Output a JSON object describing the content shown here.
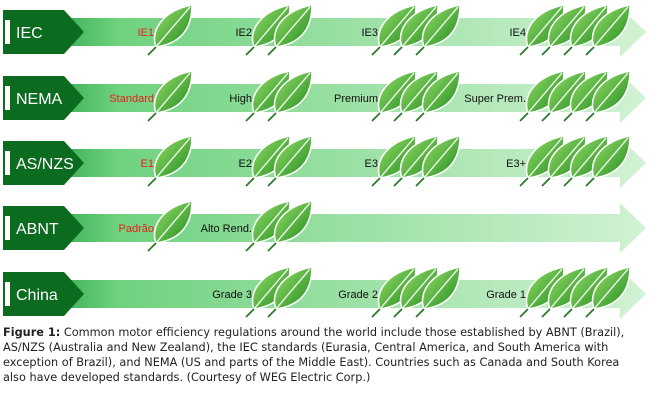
{
  "colors": {
    "arrow_start": "#0e8f2e",
    "arrow_end": "#d2f2d4",
    "label_box": "#0b6b1f",
    "lowest_class_text": "#e8201a",
    "leaf_dark": "#1f8a1f",
    "leaf_light": "#9ae06a"
  },
  "rows": [
    {
      "name": "IEC",
      "classes": [
        {
          "label": "IE1",
          "leaves": 1,
          "highlight": true
        },
        {
          "label": "IE2",
          "leaves": 2
        },
        {
          "label": "IE3",
          "leaves": 3
        },
        {
          "label": "IE4",
          "leaves": 4
        }
      ]
    },
    {
      "name": "NEMA",
      "classes": [
        {
          "label": "Standard",
          "leaves": 1,
          "highlight": true
        },
        {
          "label": "High",
          "leaves": 2
        },
        {
          "label": "Premium",
          "leaves": 3
        },
        {
          "label": "Super Prem.",
          "leaves": 4
        }
      ]
    },
    {
      "name": "AS/NZS",
      "classes": [
        {
          "label": "E1",
          "leaves": 1,
          "highlight": true
        },
        {
          "label": "E2",
          "leaves": 2
        },
        {
          "label": "E3",
          "leaves": 3
        },
        {
          "label": "E3+",
          "leaves": 4
        }
      ]
    },
    {
      "name": "ABNT",
      "classes": [
        {
          "label": "Padrão",
          "leaves": 1,
          "highlight": true
        },
        {
          "label": "Alto Rend.",
          "leaves": 2
        }
      ]
    },
    {
      "name": "China",
      "classes": [
        {
          "label": "Grade 3",
          "leaves": 2
        },
        {
          "label": "Grade 2",
          "leaves": 3
        },
        {
          "label": "Grade 1",
          "leaves": 4
        }
      ]
    }
  ],
  "caption": {
    "prefix": "Figure 1:",
    "text": " Common motor efficiency regulations around the world include those established by ABNT (Brazil), AS/NZS (Australia and New Zealand), the IEC standards (Eurasia, Central America, and South America with exception of Brazil), and NEMA (US and parts of the Middle East). Countries such as Canada and South Korea also have developed standards. (Courtesy of WEG Electric Corp.)"
  }
}
